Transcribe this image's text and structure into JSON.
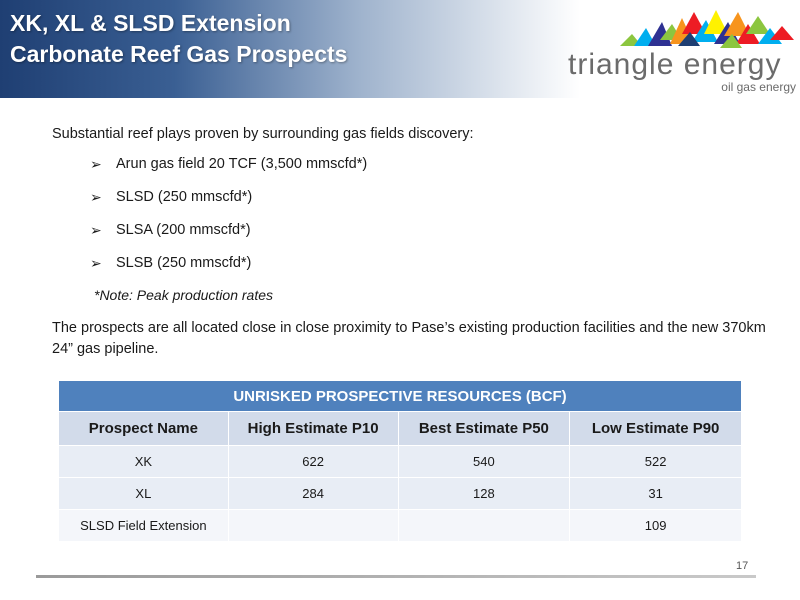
{
  "slide": {
    "title_line1": "XK, XL & SLSD Extension",
    "title_line2": "Carbonate Reef Gas Prospects",
    "page_number": "17"
  },
  "logo": {
    "name": "triangle energy",
    "tagline": "oil gas energy",
    "mark_colors": [
      "#8cc63f",
      "#f7941d",
      "#ed1c24",
      "#00aeef",
      "#2e3192",
      "#fff200"
    ]
  },
  "body": {
    "intro": "Substantial reef plays proven by surrounding gas fields discovery:",
    "bullets": [
      "Arun gas field 20 TCF (3,500 mmscfd*)",
      "SLSD (250 mmscfd*)",
      "SLSA (200 mmscfd*)",
      "SLSB (250 mmscfd*)"
    ],
    "note": "*Note: Peak production rates",
    "paragraph": "The prospects are all located close in close proximity to Pase’s existing production facilities and the new 370km 24” gas pipeline."
  },
  "table": {
    "banner": "UNRISKED PROSPECTIVE RESOURCES (BCF)",
    "headers": [
      "Prospect Name",
      "High Estimate P10",
      "Best Estimate P50",
      "Low Estimate P90"
    ],
    "rows": [
      [
        "XK",
        "622",
        "540",
        "522"
      ],
      [
        "XL",
        "284",
        "128",
        "31"
      ],
      [
        "SLSD Field Extension",
        "",
        "",
        "109"
      ]
    ]
  }
}
